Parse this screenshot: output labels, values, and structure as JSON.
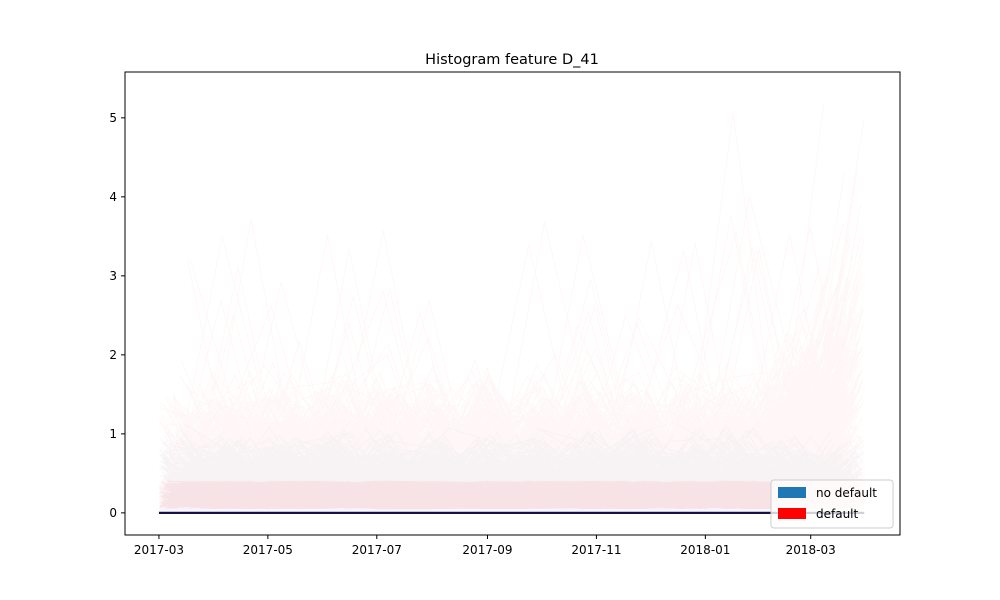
{
  "chart_data": {
    "type": "line",
    "title": "Histogram feature D_41",
    "xlabel": "",
    "ylabel": "",
    "x_ticks": [
      "2017-03",
      "2017-05",
      "2017-07",
      "2017-09",
      "2017-11",
      "2018-01",
      "2018-03"
    ],
    "y_ticks": [
      0,
      1,
      2,
      3,
      4,
      5
    ],
    "xlim": [
      "2017-02-10",
      "2018-04-20"
    ],
    "ylim": [
      -0.28,
      5.58
    ],
    "x_range_data": [
      "2017-03-01",
      "2018-03-31"
    ],
    "grid": false,
    "legend_position": "bottom-right",
    "series": [
      {
        "name": "no default",
        "color": "#1f77b4",
        "typical_range": [
          0,
          0.5
        ],
        "max_observed": 1.2
      },
      {
        "name": "default",
        "color": "#ff0000",
        "typical_range": [
          0,
          1.2
        ],
        "max_observed": 5.3,
        "late_spread_from": "2018-02-01",
        "late_spread_upper": 2.8
      }
    ],
    "baseline_value": 0.0
  }
}
